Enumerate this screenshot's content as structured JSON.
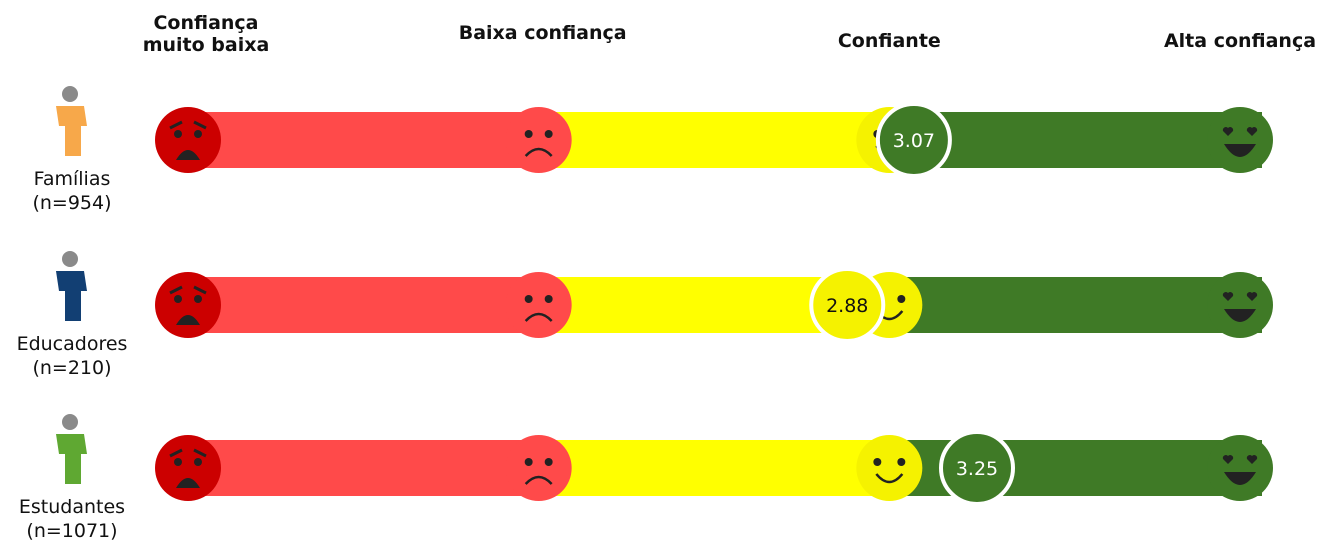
{
  "chart_data": {
    "type": "scale",
    "xlim": [
      1,
      4
    ],
    "xticks": [
      {
        "value": 1,
        "label": "Confiança muito baixa"
      },
      {
        "value": 2,
        "label": "Baixa confiança"
      },
      {
        "value": 3,
        "label": "Confiante"
      },
      {
        "value": 4,
        "label": "Alta confiança"
      }
    ],
    "series": [
      {
        "name": "Famílias",
        "n": "(n=954)",
        "color": "#f7a84a",
        "values": [
          3.07
        ]
      },
      {
        "name": "Educadores",
        "n": "(n=210)",
        "color": "#123f73",
        "values": [
          2.88
        ]
      },
      {
        "name": "Estudantes",
        "n": "(n=1071)",
        "color": "#5fa832",
        "values": [
          3.25
        ]
      }
    ]
  }
}
